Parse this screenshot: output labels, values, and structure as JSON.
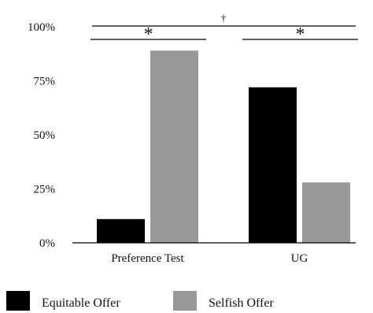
{
  "chart_data": {
    "type": "bar",
    "categories": [
      "Preference Test",
      "UG"
    ],
    "series": [
      {
        "name": "Equitable Offer",
        "color": "#000000",
        "values": [
          11,
          72
        ]
      },
      {
        "name": "Selfish Offer",
        "color": "#999999",
        "values": [
          89,
          28
        ]
      }
    ],
    "ylim": [
      0,
      100
    ],
    "yticks": [
      "0%",
      "25%",
      "50%",
      "75%",
      "100%"
    ],
    "ytick_values": [
      0,
      25,
      50,
      75,
      100
    ],
    "legend_position": "bottom",
    "grid": false,
    "significance": [
      {
        "label": "*",
        "scope": "Preference Test"
      },
      {
        "label": "*",
        "scope": "UG"
      },
      {
        "label": "†",
        "scope": "across conditions"
      }
    ]
  }
}
